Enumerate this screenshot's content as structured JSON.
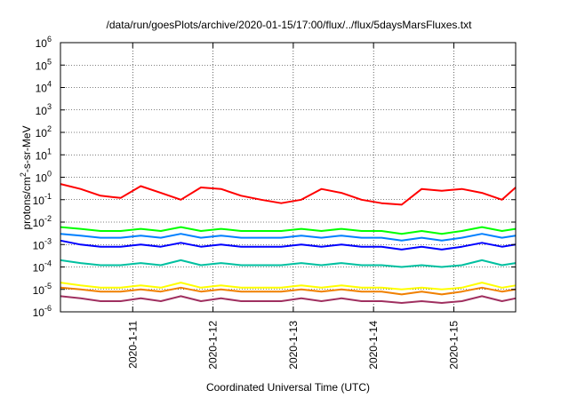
{
  "chart_data": {
    "type": "line",
    "title": "/data/run/goesPlots/archive/2020-01-15/17:00/flux/../flux/5daysMarsFluxes.txt",
    "xlabel": "Coordinated Universal Time (UTC)",
    "ylabel": {
      "pre": "protons/cm",
      "sup": "2",
      "post": "-s-sr-MeV"
    },
    "yscale": "log",
    "ylim_exponents": [
      -6,
      6
    ],
    "y_tick_base": "10",
    "y_tick_exponents": [
      "-6",
      "-5",
      "-4",
      "-3",
      "-2",
      "-1",
      "0",
      "1",
      "2",
      "3",
      "4",
      "5",
      "6"
    ],
    "xlim_days": [
      10.1,
      15.77
    ],
    "x_ticks": [
      {
        "label": "2020-1-11",
        "day": 11
      },
      {
        "label": "2020-1-12",
        "day": 12
      },
      {
        "label": "2020-1-13",
        "day": 13
      },
      {
        "label": "2020-1-14",
        "day": 14
      },
      {
        "label": "2020-1-15",
        "day": 15
      }
    ],
    "grid": true,
    "legend": "none",
    "x": [
      10.1,
      10.35,
      10.6,
      10.85,
      11.1,
      11.35,
      11.6,
      11.85,
      12.1,
      12.35,
      12.6,
      12.85,
      13.1,
      13.35,
      13.6,
      13.85,
      14.1,
      14.35,
      14.6,
      14.85,
      15.1,
      15.35,
      15.6,
      15.77
    ],
    "series": [
      {
        "color": "#ff0000",
        "values": [
          0.5,
          0.3,
          0.15,
          0.12,
          0.4,
          0.2,
          0.1,
          0.35,
          0.3,
          0.15,
          0.1,
          0.07,
          0.1,
          0.3,
          0.2,
          0.1,
          0.07,
          0.06,
          0.3,
          0.25,
          0.3,
          0.2,
          0.1,
          0.35
        ]
      },
      {
        "color": "#00ff00",
        "values": [
          0.006,
          0.005,
          0.004,
          0.004,
          0.005,
          0.004,
          0.006,
          0.004,
          0.005,
          0.004,
          0.004,
          0.004,
          0.005,
          0.004,
          0.005,
          0.004,
          0.004,
          0.003,
          0.004,
          0.003,
          0.004,
          0.006,
          0.004,
          0.005
        ]
      },
      {
        "color": "#0080ff",
        "values": [
          0.003,
          0.0025,
          0.002,
          0.002,
          0.0025,
          0.002,
          0.003,
          0.002,
          0.0025,
          0.002,
          0.002,
          0.002,
          0.0025,
          0.002,
          0.0025,
          0.002,
          0.002,
          0.0015,
          0.002,
          0.0015,
          0.002,
          0.003,
          0.002,
          0.0025
        ]
      },
      {
        "color": "#0000ff",
        "values": [
          0.0015,
          0.001,
          0.0008,
          0.0008,
          0.001,
          0.0008,
          0.0012,
          0.0008,
          0.001,
          0.0008,
          0.0008,
          0.0008,
          0.001,
          0.0008,
          0.001,
          0.0008,
          0.0008,
          0.0006,
          0.0008,
          0.0006,
          0.0008,
          0.0012,
          0.0008,
          0.001
        ]
      },
      {
        "color": "#00c0a0",
        "values": [
          0.0002,
          0.00015,
          0.00012,
          0.00012,
          0.00015,
          0.00012,
          0.0002,
          0.00012,
          0.00015,
          0.00012,
          0.00012,
          0.00012,
          0.00015,
          0.00012,
          0.00015,
          0.00012,
          0.00012,
          0.0001,
          0.00012,
          0.0001,
          0.00012,
          0.0002,
          0.00012,
          0.00015
        ]
      },
      {
        "color": "#ffff00",
        "values": [
          2e-05,
          1.5e-05,
          1.2e-05,
          1.2e-05,
          1.5e-05,
          1.2e-05,
          2e-05,
          1.2e-05,
          1.5e-05,
          1.2e-05,
          1.2e-05,
          1.2e-05,
          1.5e-05,
          1.2e-05,
          1.5e-05,
          1.2e-05,
          1.2e-05,
          1e-05,
          1.2e-05,
          1e-05,
          1.2e-05,
          2e-05,
          1.2e-05,
          1.5e-05
        ]
      },
      {
        "color": "#f08000",
        "values": [
          1.2e-05,
          1e-05,
          8e-06,
          8e-06,
          1e-05,
          8e-06,
          1.2e-05,
          8e-06,
          1e-05,
          8e-06,
          8e-06,
          8e-06,
          1e-05,
          8e-06,
          1e-05,
          8e-06,
          8e-06,
          6e-06,
          8e-06,
          6e-06,
          8e-06,
          1.2e-05,
          8e-06,
          1e-05
        ]
      },
      {
        "color": "#a03060",
        "values": [
          5e-06,
          4e-06,
          3e-06,
          3e-06,
          4e-06,
          3e-06,
          5e-06,
          3e-06,
          4e-06,
          3e-06,
          3e-06,
          3e-06,
          4e-06,
          3e-06,
          4e-06,
          3e-06,
          3e-06,
          2.5e-06,
          3e-06,
          2.5e-06,
          3e-06,
          5e-06,
          3e-06,
          4e-06
        ]
      }
    ]
  }
}
